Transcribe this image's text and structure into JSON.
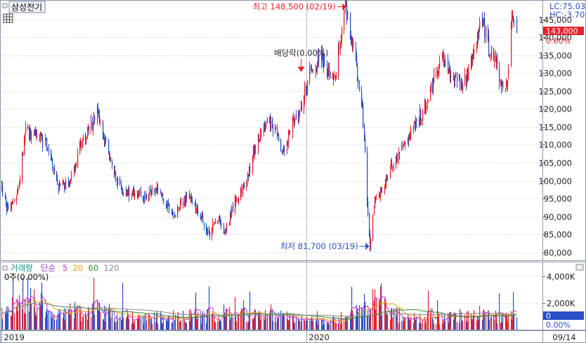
{
  "header": {
    "stock_name": "삼성전기",
    "lc_label": "LC:75.03",
    "hc_label": "HC:-3.70"
  },
  "price_panel": {
    "current_price_label": "143,000",
    "current_change_label": "0.00%",
    "annotations": {
      "high": {
        "label": "최고 148,500 (02/19)",
        "date": "2020-02-19",
        "value": 148500
      },
      "low": {
        "label": "최저 81,700 (03/19)",
        "date": "2020-03-19",
        "value": 81700
      },
      "dividend": {
        "label": "배당락(0.00%)",
        "date": "2019-12-27"
      }
    }
  },
  "volume_panel": {
    "legend": [
      {
        "label": "거래량",
        "color": "#118c8c"
      },
      {
        "label": "단순",
        "color": "#9933cc"
      },
      {
        "label": "5",
        "color": "#cc33cc"
      },
      {
        "label": "20",
        "color": "#e8a010"
      },
      {
        "label": "60",
        "color": "#2e8b2e"
      },
      {
        "label": "120",
        "color": "#888888"
      }
    ],
    "sub_label": "0주(0.00%)",
    "current_volume_label": "0",
    "current_change_label": "0.00%"
  },
  "colors": {
    "up": "#e8202c",
    "down": "#2a50c8",
    "current_box": "#e8202c",
    "volume_box": "#2a50c8",
    "grid": "#c8ccd4"
  },
  "chart_data": {
    "type": "candlestick",
    "x_axis": {
      "start": "2018-12-27",
      "end": "2020-09-14",
      "tick_labels": [
        "2019",
        "2020",
        "09/14"
      ]
    },
    "price_axis": {
      "ylim": [
        78000,
        150000
      ],
      "ticks": [
        80000,
        85000,
        90000,
        95000,
        100000,
        105000,
        110000,
        115000,
        120000,
        125000,
        130000,
        135000,
        140000,
        145000
      ],
      "tick_labels": [
        "80,000",
        "85,000",
        "90,000",
        "95,000",
        "100,000",
        "105,000",
        "110,000",
        "115,000",
        "120,000",
        "125,000",
        "130,000",
        "135,000",
        "140,000",
        "145,000"
      ]
    },
    "volume_axis": {
      "ylim": [
        0,
        5000000
      ],
      "ticks": [
        2000000,
        4000000
      ],
      "tick_labels": [
        "2,000K",
        "4,000K"
      ]
    },
    "price_keypoints": [
      [
        "2018-12-27",
        98000
      ],
      [
        "2019-01-02",
        92000
      ],
      [
        "2019-01-15",
        96000
      ],
      [
        "2019-01-25",
        114000
      ],
      [
        "2019-02-05",
        113000
      ],
      [
        "2019-02-20",
        110000
      ],
      [
        "2019-03-05",
        98000
      ],
      [
        "2019-03-20",
        100000
      ],
      [
        "2019-04-05",
        111000
      ],
      [
        "2019-04-22",
        119000
      ],
      [
        "2019-05-05",
        108000
      ],
      [
        "2019-05-20",
        98000
      ],
      [
        "2019-06-10",
        96000
      ],
      [
        "2019-07-05",
        97000
      ],
      [
        "2019-07-25",
        91000
      ],
      [
        "2019-08-10",
        96000
      ],
      [
        "2019-08-25",
        91000
      ],
      [
        "2019-09-05",
        85000
      ],
      [
        "2019-09-15",
        90000
      ],
      [
        "2019-09-25",
        86000
      ],
      [
        "2019-10-05",
        93000
      ],
      [
        "2019-10-20",
        100000
      ],
      [
        "2019-11-05",
        112000
      ],
      [
        "2019-11-15",
        117000
      ],
      [
        "2019-11-25",
        114000
      ],
      [
        "2019-12-05",
        108000
      ],
      [
        "2019-12-15",
        115000
      ],
      [
        "2019-12-27",
        120000
      ],
      [
        "2020-01-05",
        130000
      ],
      [
        "2020-01-20",
        135000
      ],
      [
        "2020-02-05",
        128000
      ],
      [
        "2020-02-19",
        148500
      ],
      [
        "2020-03-01",
        135000
      ],
      [
        "2020-03-10",
        120000
      ],
      [
        "2020-03-19",
        81700
      ],
      [
        "2020-03-25",
        95000
      ],
      [
        "2020-04-05",
        97000
      ],
      [
        "2020-04-15",
        104000
      ],
      [
        "2020-04-25",
        108000
      ],
      [
        "2020-05-10",
        115000
      ],
      [
        "2020-05-25",
        120000
      ],
      [
        "2020-06-05",
        128000
      ],
      [
        "2020-06-15",
        135000
      ],
      [
        "2020-06-25",
        130000
      ],
      [
        "2020-07-10",
        126000
      ],
      [
        "2020-07-25",
        135000
      ],
      [
        "2020-08-02",
        146000
      ],
      [
        "2020-08-10",
        138000
      ],
      [
        "2020-08-20",
        133000
      ],
      [
        "2020-08-28",
        125000
      ],
      [
        "2020-09-03",
        130000
      ],
      [
        "2020-09-09",
        146000
      ],
      [
        "2020-09-14",
        143000
      ]
    ],
    "volume_profile": [
      [
        "2018-12-27",
        1300000
      ],
      [
        "2019-01-15",
        1900000
      ],
      [
        "2019-01-25",
        2500000
      ],
      [
        "2019-03-01",
        1200000
      ],
      [
        "2019-04-20",
        1500000
      ],
      [
        "2019-06-01",
        900000
      ],
      [
        "2019-09-01",
        1000000
      ],
      [
        "2019-11-15",
        1100000
      ],
      [
        "2020-01-10",
        600000
      ],
      [
        "2020-02-20",
        900000
      ],
      [
        "2020-03-20",
        2200000
      ],
      [
        "2020-04-20",
        1100000
      ],
      [
        "2020-06-20",
        900000
      ],
      [
        "2020-08-05",
        1000000
      ],
      [
        "2020-09-14",
        900000
      ]
    ]
  }
}
